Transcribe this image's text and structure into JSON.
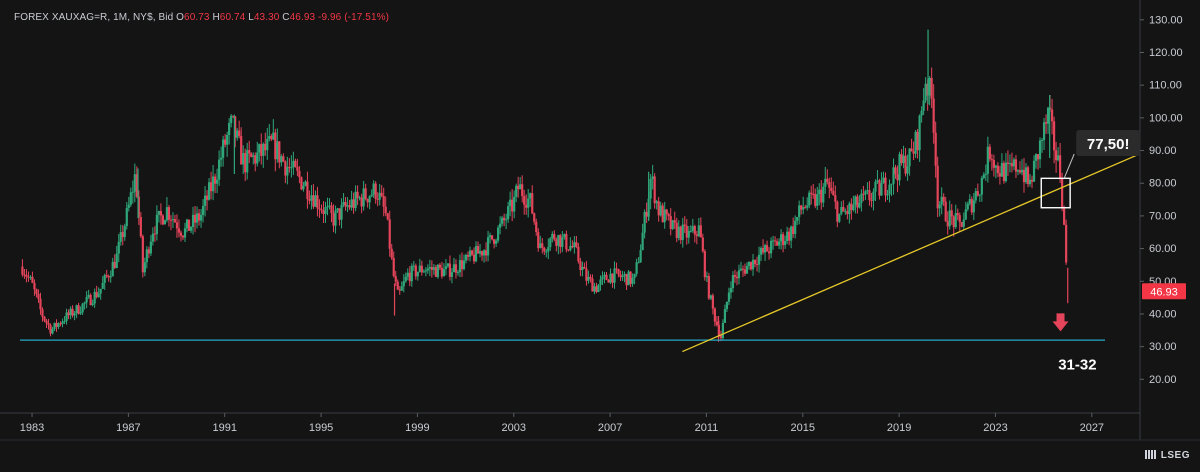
{
  "header": {
    "symbol": "FOREX XAUXAG=R, 1M, NY$, Bid",
    "open_label": "O",
    "open": "60.73",
    "high_label": "H",
    "high": "60.74",
    "low_label": "L",
    "low": "43.30",
    "close_label": "C",
    "close": "46.93",
    "change": "-9.96 (-17.51%)"
  },
  "branding": {
    "name": "LSEG"
  },
  "colors": {
    "background": "#141414",
    "up": "#2fa77a",
    "down": "#e5455a",
    "support": "#26a7c7",
    "trendline": "#e6c829",
    "price_tag": "#f23645"
  },
  "chart_data": {
    "type": "candlestick",
    "x_ticks": [
      "1983",
      "1987",
      "1991",
      "1995",
      "1999",
      "2003",
      "2007",
      "2011",
      "2015",
      "2019",
      "2023",
      "2027"
    ],
    "x_range": [
      1982.5,
      2029.0
    ],
    "y_ticks": [
      "20.00",
      "30.00",
      "40.00",
      "50.00",
      "60.00",
      "70.00",
      "80.00",
      "90.00",
      "100.00",
      "110.00",
      "120.00",
      "130.00"
    ],
    "y_range": [
      10,
      133
    ],
    "last_price": "46.93",
    "support_level": 32,
    "trendline": {
      "from": [
        2010.0,
        28.5
      ],
      "to": [
        2029.0,
        89
      ]
    },
    "annotations": [
      {
        "text": "77,50!",
        "x": 2026.6,
        "y": 92
      },
      {
        "text": "31-32",
        "x": 2026.4,
        "y": 28.5
      }
    ],
    "highlight_box": {
      "x0": 2024.9,
      "x1": 2026.1,
      "y0": 72.5,
      "y1": 81.5
    },
    "arrow": {
      "x": 2025.7,
      "y": 36.5
    },
    "anchors": [
      [
        1982.6,
        54.5
      ],
      [
        1983.0,
        49
      ],
      [
        1983.4,
        40
      ],
      [
        1983.8,
        35
      ],
      [
        1984.3,
        38.5
      ],
      [
        1985.0,
        42
      ],
      [
        1985.8,
        47
      ],
      [
        1986.5,
        57
      ],
      [
        1987.0,
        72
      ],
      [
        1987.3,
        83
      ],
      [
        1987.6,
        53
      ],
      [
        1988.0,
        66
      ],
      [
        1988.6,
        72
      ],
      [
        1989.3,
        65
      ],
      [
        1990.0,
        70
      ],
      [
        1990.6,
        82
      ],
      [
        1991.0,
        92
      ],
      [
        1991.3,
        98
      ],
      [
        1991.8,
        86
      ],
      [
        1992.5,
        89
      ],
      [
        1993.0,
        92
      ],
      [
        1993.5,
        86
      ],
      [
        1994.3,
        80
      ],
      [
        1995.0,
        73
      ],
      [
        1995.5,
        69
      ],
      [
        1996.1,
        73
      ],
      [
        1996.8,
        76
      ],
      [
        1997.3,
        78
      ],
      [
        1997.7,
        70
      ],
      [
        1998.0,
        52
      ],
      [
        1998.2,
        45
      ],
      [
        1998.6,
        52
      ],
      [
        1999.3,
        54
      ],
      [
        2000.2,
        53
      ],
      [
        2001.0,
        56
      ],
      [
        2001.8,
        60
      ],
      [
        2002.5,
        67
      ],
      [
        2003.0,
        74
      ],
      [
        2003.2,
        79
      ],
      [
        2003.7,
        74
      ],
      [
        2004.1,
        60
      ],
      [
        2004.7,
        64
      ],
      [
        2005.5,
        60
      ],
      [
        2006.0,
        51
      ],
      [
        2006.4,
        48
      ],
      [
        2007.0,
        52
      ],
      [
        2007.7,
        51
      ],
      [
        2008.0,
        50
      ],
      [
        2008.3,
        62
      ],
      [
        2008.7,
        82
      ],
      [
        2009.0,
        72
      ],
      [
        2009.6,
        66
      ],
      [
        2010.3,
        64
      ],
      [
        2010.7,
        66
      ],
      [
        2011.0,
        50
      ],
      [
        2011.3,
        40
      ],
      [
        2011.6,
        33
      ],
      [
        2012.0,
        50
      ],
      [
        2012.6,
        54
      ],
      [
        2013.2,
        58
      ],
      [
        2013.8,
        61
      ],
      [
        2014.5,
        65
      ],
      [
        2015.0,
        73
      ],
      [
        2015.6,
        75
      ],
      [
        2016.0,
        80
      ],
      [
        2016.5,
        70
      ],
      [
        2017.0,
        72
      ],
      [
        2017.8,
        76
      ],
      [
        2018.5,
        80
      ],
      [
        2019.0,
        85
      ],
      [
        2019.5,
        88
      ],
      [
        2019.8,
        95
      ],
      [
        2020.1,
        112
      ],
      [
        2020.4,
        104
      ],
      [
        2020.6,
        75
      ],
      [
        2021.0,
        70
      ],
      [
        2021.5,
        67
      ],
      [
        2022.0,
        74
      ],
      [
        2022.4,
        80
      ],
      [
        2022.8,
        91
      ],
      [
        2023.0,
        85
      ],
      [
        2023.5,
        83
      ],
      [
        2024.0,
        86
      ],
      [
        2024.4,
        79
      ],
      [
        2024.8,
        90
      ],
      [
        2025.2,
        101
      ],
      [
        2025.5,
        89
      ],
      [
        2025.7,
        83
      ],
      [
        2025.8,
        72
      ],
      [
        2025.9,
        60
      ],
      [
        2026.0,
        46.9
      ]
    ],
    "spikes": [
      {
        "x": 2020.2,
        "y": 127,
        "up": true
      },
      {
        "x": 2025.25,
        "y": 107,
        "up": true
      },
      {
        "x": 2026.0,
        "y": 43.3,
        "up": false
      },
      {
        "x": 1987.4,
        "y": 84.5,
        "up": true
      },
      {
        "x": 1991.4,
        "y": 101,
        "up": true
      },
      {
        "x": 1998.05,
        "y": 39.5,
        "up": false
      },
      {
        "x": 2008.6,
        "y": 83.5,
        "up": true
      },
      {
        "x": 2011.5,
        "y": 31.5,
        "up": false
      }
    ]
  }
}
